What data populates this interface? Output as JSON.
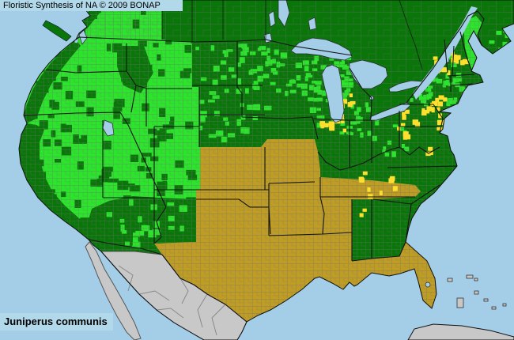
{
  "header": {
    "title": "Floristic Synthesis of NA © 2009 BONAP"
  },
  "species": {
    "name": "Juniperus communis"
  },
  "colors": {
    "water": "#A4CEE8",
    "panel": "#B2D9EA",
    "state_present": "#0A760A",
    "county_present": "#2BE42B",
    "rare": "#FFDF2E",
    "absent": "#BF9D25",
    "not_mapped": "#C8C8C8",
    "county_line": "#6F6F6F",
    "state_line": "#141414",
    "coast_line": "#101010",
    "text": "#000000"
  },
  "regions": {
    "canada": "state_present",
    "western_us": "county_present",
    "upper_midwest_northeast": "county_present",
    "south_central_plains": "absent",
    "eastern_us": "state_present",
    "mexico": "not_mapped"
  }
}
